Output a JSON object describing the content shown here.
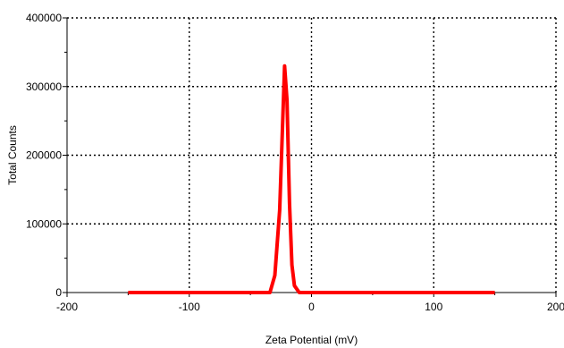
{
  "chart_data": {
    "type": "line",
    "title": "",
    "xlabel": "Zeta Potential (mV)",
    "ylabel": "Total Counts",
    "xlim": [
      -200,
      200
    ],
    "ylim": [
      0,
      400000
    ],
    "x_ticks": [
      -200,
      -100,
      0,
      100,
      200
    ],
    "x_tick_labels": [
      "-200",
      "-100",
      "0",
      "100",
      "200"
    ],
    "y_ticks": [
      0,
      100000,
      200000,
      300000,
      400000
    ],
    "y_tick_labels": [
      "0",
      "100000",
      "200000",
      "300000",
      "400000"
    ],
    "grid": true,
    "legend": "none",
    "series": [
      {
        "color": "#ff0000",
        "x": [
          -150,
          -120,
          -80,
          -50,
          -34,
          -30,
          -26,
          -22,
          -20,
          -18,
          -16,
          -14,
          -10,
          -5,
          0,
          50,
          100,
          150
        ],
        "y": [
          0,
          0,
          0,
          0,
          0,
          25000,
          120000,
          330000,
          280000,
          130000,
          40000,
          10000,
          0,
          0,
          0,
          0,
          0,
          0
        ]
      }
    ]
  }
}
